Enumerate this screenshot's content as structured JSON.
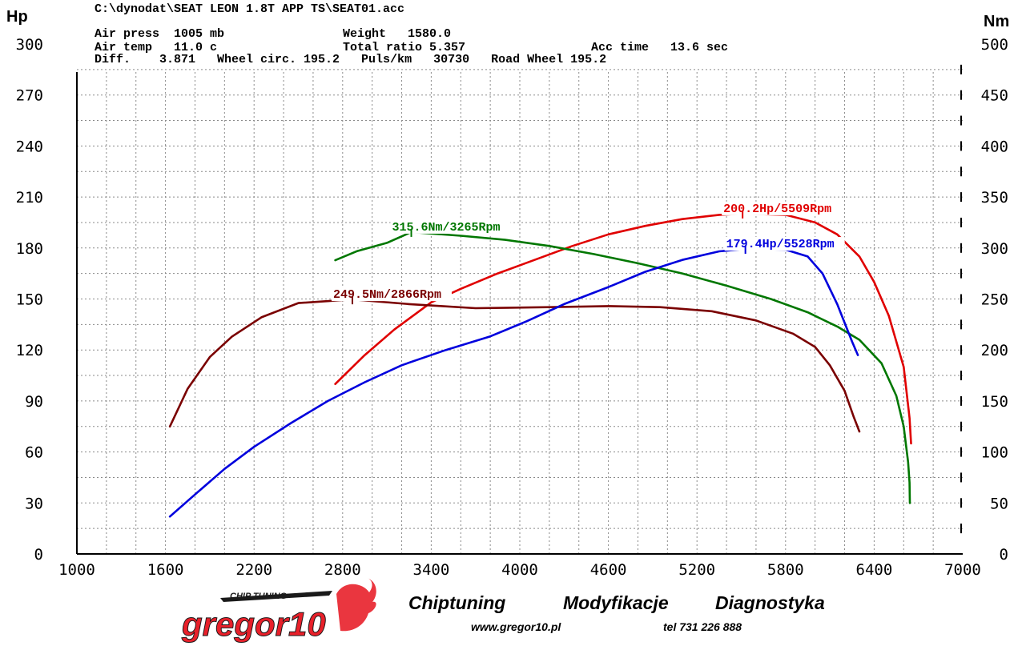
{
  "header": {
    "file_path": "C:\\dynodat\\SEAT LEON 1.8T APP TS\\SEAT01.acc",
    "line1_a": "Air press  1005 mb",
    "line1_b": "Weight   1580.0",
    "line2_a": "Air temp   11.0 c",
    "line2_b": "Total ratio 5.357",
    "line2_c": "Acc time   13.6 sec",
    "line3": "Diff.    3.871   Wheel circ. 195.2   Puls/km   30730   Road Wheel 195.2"
  },
  "chart_data": {
    "type": "line",
    "x_unit": "rpm",
    "xlim": [
      1000,
      7000
    ],
    "x_ticks": [
      "1000",
      "1600",
      "2200",
      "2800",
      "3400",
      "4000",
      "4600",
      "5200",
      "5800",
      "6400",
      "7000"
    ],
    "y_left": {
      "unit": "Hp",
      "ylim": [
        0,
        300
      ],
      "ticks": [
        "0",
        "30",
        "60",
        "90",
        "120",
        "150",
        "180",
        "210",
        "240",
        "270",
        "300"
      ]
    },
    "y_right": {
      "unit": "Nm",
      "ylim": [
        0,
        500
      ],
      "ticks": [
        "0",
        "50",
        "100",
        "150",
        "200",
        "250",
        "300",
        "350",
        "400",
        "450",
        "500"
      ]
    },
    "grid": true,
    "series": [
      {
        "axis": "left",
        "color": "#e00000",
        "points": [
          [
            2750,
            100
          ],
          [
            2950,
            117
          ],
          [
            3150,
            132
          ],
          [
            3400,
            148
          ],
          [
            3600,
            156
          ],
          [
            3850,
            165
          ],
          [
            4100,
            173
          ],
          [
            4350,
            181
          ],
          [
            4600,
            188
          ],
          [
            4850,
            193
          ],
          [
            5100,
            197
          ],
          [
            5350,
            199.5
          ],
          [
            5509,
            200.2
          ],
          [
            5800,
            199.5
          ],
          [
            6000,
            195
          ],
          [
            6150,
            188
          ],
          [
            6300,
            175
          ],
          [
            6400,
            160
          ],
          [
            6500,
            140
          ],
          [
            6600,
            110
          ],
          [
            6640,
            80
          ],
          [
            6650,
            65
          ]
        ]
      },
      {
        "axis": "right",
        "color": "#007700",
        "points": [
          [
            2750,
            288
          ],
          [
            2900,
            297
          ],
          [
            3100,
            305
          ],
          [
            3265,
            315.6
          ],
          [
            3600,
            312
          ],
          [
            3900,
            308
          ],
          [
            4200,
            302
          ],
          [
            4500,
            294
          ],
          [
            4800,
            285
          ],
          [
            5100,
            275
          ],
          [
            5400,
            263
          ],
          [
            5700,
            250
          ],
          [
            5950,
            237
          ],
          [
            6150,
            223
          ],
          [
            6300,
            210
          ],
          [
            6450,
            187
          ],
          [
            6550,
            155
          ],
          [
            6600,
            125
          ],
          [
            6630,
            90
          ],
          [
            6640,
            70
          ],
          [
            6642,
            50
          ]
        ]
      },
      {
        "axis": "right",
        "color": "#7a0000",
        "points": [
          [
            1630,
            125
          ],
          [
            1750,
            162
          ],
          [
            1900,
            193
          ],
          [
            2050,
            213
          ],
          [
            2250,
            232
          ],
          [
            2500,
            246
          ],
          [
            2866,
            249.5
          ],
          [
            3250,
            245
          ],
          [
            3700,
            241
          ],
          [
            4200,
            242
          ],
          [
            4600,
            243
          ],
          [
            4950,
            242
          ],
          [
            5300,
            238
          ],
          [
            5600,
            229
          ],
          [
            5850,
            216
          ],
          [
            6000,
            203
          ],
          [
            6100,
            185
          ],
          [
            6200,
            160
          ],
          [
            6260,
            135
          ],
          [
            6300,
            120
          ]
        ]
      },
      {
        "axis": "left",
        "color": "#0000dd",
        "points": [
          [
            1630,
            22
          ],
          [
            1800,
            35
          ],
          [
            2000,
            50
          ],
          [
            2200,
            63
          ],
          [
            2450,
            77
          ],
          [
            2700,
            90
          ],
          [
            2950,
            101
          ],
          [
            3200,
            111
          ],
          [
            3500,
            120
          ],
          [
            3800,
            128
          ],
          [
            4050,
            137
          ],
          [
            4300,
            147
          ],
          [
            4600,
            157
          ],
          [
            4850,
            166
          ],
          [
            5100,
            173
          ],
          [
            5350,
            178
          ],
          [
            5528,
            179.4
          ],
          [
            5800,
            179
          ],
          [
            5950,
            175
          ],
          [
            6050,
            165
          ],
          [
            6150,
            147
          ],
          [
            6250,
            125
          ],
          [
            6290,
            117
          ]
        ]
      }
    ],
    "annotations": [
      {
        "text": "200.2Hp/5509Rpm",
        "color": "#e00000",
        "x": 5509,
        "axis": "left",
        "y": 200.2
      },
      {
        "text": "315.6Nm/3265Rpm",
        "color": "#007700",
        "x": 3265,
        "axis": "right",
        "y": 315.6
      },
      {
        "text": "249.5Nm/2866Rpm",
        "color": "#7a0000",
        "x": 2866,
        "axis": "right",
        "y": 249.5
      },
      {
        "text": "179.4Hp/5528Rpm",
        "color": "#0000dd",
        "x": 5528,
        "axis": "left",
        "y": 179.4
      }
    ]
  },
  "footer": {
    "chiptuning": "Chiptuning",
    "modyfikacje": "Modyfikacje",
    "diagnostyka": "Diagnostyka",
    "website": "www.gregor10.pl",
    "phone": "tel 731 226 888"
  },
  "logo": {
    "top_text": "CHIP TUNING",
    "brand": "gregor10",
    "primary_color": "#e8202a",
    "dark_color": "#1a1a1a"
  }
}
